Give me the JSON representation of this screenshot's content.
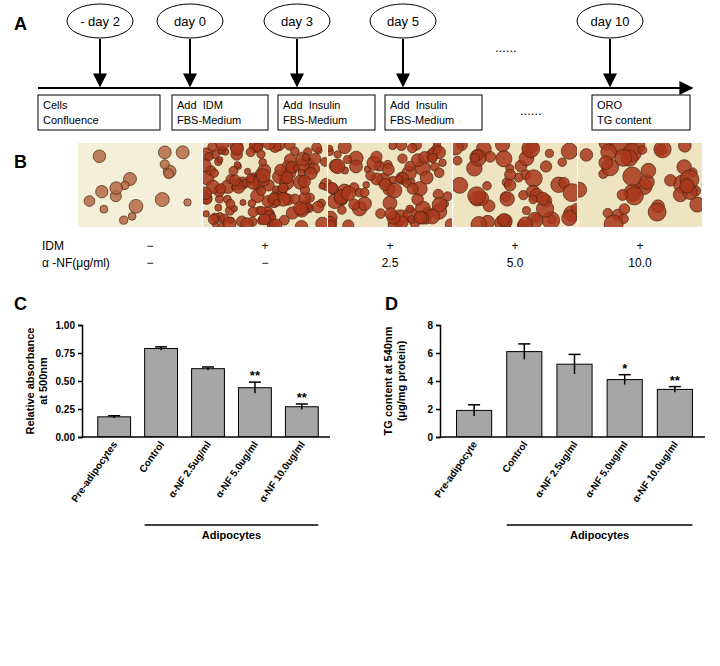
{
  "panel_labels": [
    "A",
    "B",
    "C",
    "D"
  ],
  "diagram": {
    "steps": [
      {
        "day": "- day 2",
        "box": [
          "Cells",
          "Confluence"
        ]
      },
      {
        "day": "day 0",
        "box": [
          "Add  IDM",
          "FBS-Medium"
        ]
      },
      {
        "day": "day 3",
        "box": [
          "Add  Insulin",
          "FBS-Medium"
        ]
      },
      {
        "day": "day 5",
        "box": [
          "Add  Insulin",
          "FBS-Medium"
        ]
      },
      {
        "day": "day 10",
        "box": [
          "ORO",
          "TG content"
        ]
      }
    ],
    "ellipses": [
      "......",
      "......"
    ]
  },
  "micrographs": {
    "rows": [
      {
        "label": "IDM",
        "values": [
          "−",
          "+",
          "+",
          "+",
          "+"
        ]
      },
      {
        "label": "α -NF(μg/ml)",
        "values": [
          "−",
          "−",
          "2.5",
          "5.0",
          "10.0"
        ]
      }
    ]
  },
  "chart_data": [
    {
      "type": "bar",
      "ylabel": [
        "Relative absorbance",
        "at 500nm"
      ],
      "categories": [
        "Pre-adipocytes",
        "Control",
        "α-NF 2.5ug/ml",
        "α-NF 5.0ug/ml",
        "α-NF 10.0ug/ml"
      ],
      "values": [
        0.18,
        0.79,
        0.61,
        0.44,
        0.27
      ],
      "errors": [
        0.01,
        0.015,
        0.015,
        0.05,
        0.025
      ],
      "significance": [
        null,
        null,
        null,
        "**",
        "**"
      ],
      "group": {
        "label": "Adipocytes",
        "categories": [
          1,
          2,
          3,
          4
        ]
      },
      "color": "#a6a6a6",
      "ylim": [
        0,
        1
      ],
      "yticks": [
        {
          "value": 0,
          "label": "0.00"
        },
        {
          "value": 0.25,
          "label": "0.25"
        },
        {
          "value": 0.5,
          "label": "0.50"
        },
        {
          "value": 0.75,
          "label": "0.75"
        },
        {
          "value": 1,
          "label": "1.00"
        }
      ],
      "grid": false
    },
    {
      "type": "bar",
      "ylabel": [
        "TG content at 540nm",
        "(μg/mg protein)"
      ],
      "categories": [
        "Pre-adipocyte",
        "Control",
        "α-NF 2.5ug/ml",
        "α-NF 5.0ug/ml",
        "α-NF 10.0ug/ml"
      ],
      "values": [
        1.9,
        6.1,
        5.2,
        4.1,
        3.4
      ],
      "errors": [
        0.4,
        0.55,
        0.7,
        0.35,
        0.2
      ],
      "significance": [
        null,
        null,
        null,
        "*",
        "**"
      ],
      "group": {
        "label": "Adipocytes",
        "categories": [
          1,
          2,
          3,
          4
        ]
      },
      "color": "#a6a6a6",
      "ylim": [
        0,
        8
      ],
      "yticks": [
        0,
        2,
        4,
        6,
        8
      ],
      "grid": false
    }
  ]
}
